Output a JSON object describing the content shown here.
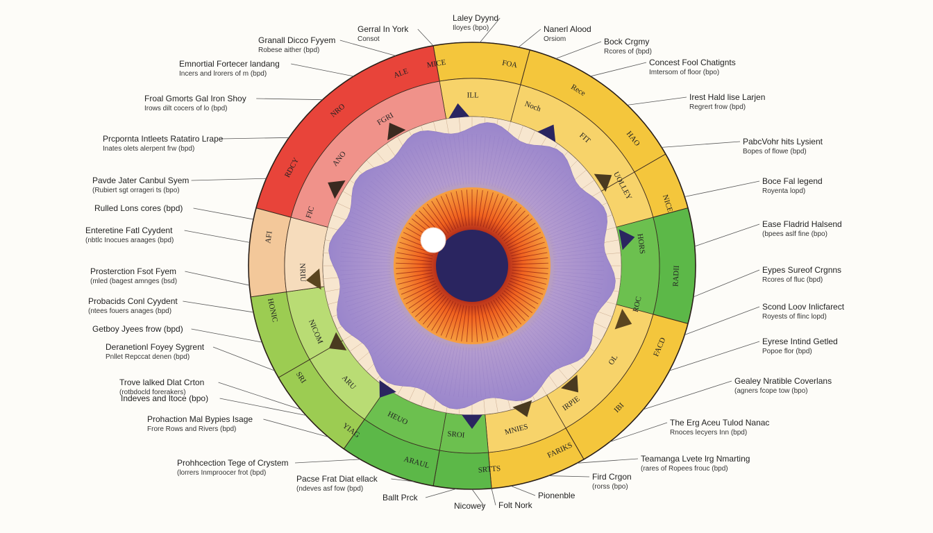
{
  "colors": {
    "red": "#e8443a",
    "pink": "#ee8a82",
    "yellow": "#f4c63c",
    "green": "#5cb848",
    "lightgreen": "#9ccc52",
    "peach": "#f3c89a",
    "cream": "#f7e6cf",
    "lavender": "#a48fcf",
    "iris_orange": "#f0621f",
    "pupil": "#2a2560"
  },
  "center_tags": {
    "top": [
      "MICE",
      "ILL",
      "FOA",
      "Noch",
      "Rece",
      "FIT",
      "HAO",
      "UOLLEY",
      "NICE",
      "HORS",
      "RADII",
      "ROC",
      "FACD"
    ],
    "right": [
      "OL",
      "IBI",
      "IRPIE",
      "FARIKS",
      "MNIES",
      "SRTTS",
      "SROI",
      "ARAUL"
    ],
    "bottom": [
      "HEUO",
      "YIAG",
      "ARU",
      "SRI",
      "NICOM",
      "HONIC",
      "NRIU",
      "AFI",
      "FIC"
    ],
    "left": [
      "RDCY",
      "ANO",
      "NRO",
      "FGRI",
      "ALE"
    ]
  },
  "labels": [
    {
      "title": "Granall Dicco Fyyem",
      "sub": "Robese aither (bpd)"
    },
    {
      "title": "Gerral In York",
      "sub": "Consot"
    },
    {
      "title": "Laley Dyynd",
      "sub": "Iloyes (bpo)"
    },
    {
      "title": "Nanerl Alood",
      "sub": "Orsiom"
    },
    {
      "title": "Bock Crgmy",
      "sub": "Rcores of (bpd)"
    },
    {
      "title": "Concest Fool Chatignts",
      "sub": "Imtersom of floor (bpo)"
    },
    {
      "title": "Emnortial Fortecer landang",
      "sub": "Incers and lrorers of m (bpd)"
    },
    {
      "title": "Irest Hald lise Larjen",
      "sub": "Regrert frow (bpd)"
    },
    {
      "title": "Froal Gmorts Gal Iron Shoy",
      "sub": "Irows dilt cocers of lo (bpd)"
    },
    {
      "title": "Prcpornta Intleets Ratatiro Lrape",
      "sub": "Inates olets alerpent frw (bpd)"
    },
    {
      "title": "PabcVohr hits Lysient",
      "sub": "Bopes of flowe (bpd)"
    },
    {
      "title": "Pavde Jater Canbul Syem",
      "sub": "(Rubiert sgt orrageri ts (bpo)"
    },
    {
      "title": "Boce Fal legend",
      "sub": "Royenta lopd)"
    },
    {
      "title": "Rulled Lons cores (bpd)",
      "sub": ""
    },
    {
      "title": "Enteretine Fatl Cyydent",
      "sub": "(nbtlc Inocues araages (bpd)"
    },
    {
      "title": "Ease Fladrid Halsend",
      "sub": "(bpees aslf fine (bpo)"
    },
    {
      "title": "Prosterction Fsot Fyem",
      "sub": "(mled (bagest amnges (bsd)"
    },
    {
      "title": "Eypes Sureof Crgnns",
      "sub": "Rcores of fluc (bpd)"
    },
    {
      "title": "Probacids Conl Cyydent",
      "sub": "(ntees fouers anages (bpd)"
    },
    {
      "title": "Scond Loov Inlicfarect",
      "sub": "Royests of flinc lopd)"
    },
    {
      "title": "Getboy Jyees frow (bpd)",
      "sub": ""
    },
    {
      "title": "Eyrese Intind Getled",
      "sub": "Popoe flor (bpd)"
    },
    {
      "title": "Deranetionl Foyey Sygrent",
      "sub": "Pnllet Repccat denen (bpd)"
    },
    {
      "title": "Gealey Nratible Coverlans",
      "sub": "(agners fcope tow (bpo)"
    },
    {
      "title": "Trove lalked Dlat Crton",
      "sub": "(rotbdocld forerakers)"
    },
    {
      "title": "The Erg Aceu Tulod Nanac",
      "sub": "Rnoces lecyers Inn (bpd)"
    },
    {
      "title": "Prohaction Mal Bypies Isage",
      "sub": "Frore Rows and Rivers (bpd)"
    },
    {
      "title": "Teamanga Lvete lrg Nmarting",
      "sub": "(rares of Ropees frouc (bpd)"
    },
    {
      "title": "Prohhcection Tege of Crystem",
      "sub": "(lorrers Inmproocer frot (bpd)"
    },
    {
      "title": "Fird Crgon",
      "sub": "(rorss (bpo)"
    },
    {
      "title": "Pacse Frat Diat ellack",
      "sub": "(ndeves asf fow (bpd)"
    },
    {
      "title": "Pionenble",
      "sub": ""
    },
    {
      "title": "Ballt Prck",
      "sub": ""
    },
    {
      "title": "Folt Nork",
      "sub": ""
    },
    {
      "title": "Nicowey",
      "sub": ""
    },
    {
      "title": "Indeves and Itoce (bpo)",
      "sub": ""
    }
  ]
}
